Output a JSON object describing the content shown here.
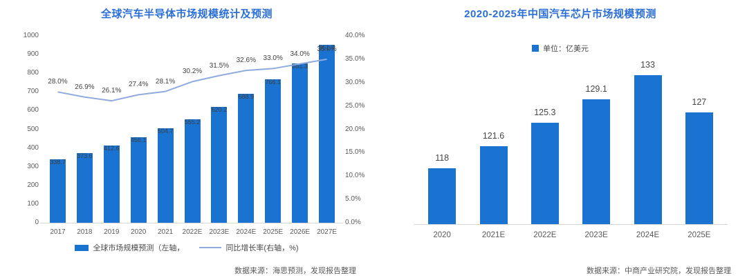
{
  "chart_data": [
    {
      "type": "combo-bar-line",
      "title": "全球汽车半导体市场规模统计及预测",
      "categories": [
        "2017",
        "2018",
        "2019",
        "2020",
        "2021",
        "2022E",
        "2023E",
        "2024E",
        "2025E",
        "2026E",
        "2027E"
      ],
      "series": [
        {
          "name": "全球市场规模预测（左轴，",
          "type": "bar",
          "axis": "left",
          "values": [
            338.7,
            373.6,
            412.6,
            456.1,
            504.7,
            555.2,
            620.2,
            688.9,
            766.1,
            851.3,
            951.7
          ],
          "value_labels": [
            "338.7",
            "373.6",
            "412.6",
            "456.1",
            "504.7",
            "555.2",
            "620.2",
            "688.9",
            "766.1",
            "851.3",
            "951.7"
          ]
        },
        {
          "name": "同比增长率(右轴，%)",
          "type": "line",
          "axis": "right",
          "values": [
            28.0,
            26.9,
            26.1,
            27.4,
            28.1,
            30.2,
            31.5,
            32.6,
            33.0,
            34.0,
            35.0
          ],
          "value_labels": [
            "28.0%",
            "26.9%",
            "26.1%",
            "27.4%",
            "28.1%",
            "30.2%",
            "31.5%",
            "32.6%",
            "33.0%",
            "34.0%",
            "35.0%"
          ]
        }
      ],
      "left_axis": {
        "min": 0,
        "max": 1000,
        "step": 100,
        "ticks": [
          "1000",
          "900",
          "800",
          "700",
          "600",
          "500",
          "400",
          "300",
          "200",
          "100",
          "0"
        ]
      },
      "right_axis": {
        "min": 0,
        "max": 40,
        "step": 5,
        "ticks": [
          "40.0%",
          "35.0%",
          "30.0%",
          "25.0%",
          "20.0%",
          "15.0%",
          "10.0%",
          "5.0%",
          "0.0%"
        ]
      },
      "grid": false,
      "legend_position": "bottom",
      "source": "数据来源：海思预测，发现报告整理",
      "colors": {
        "bar": "#1a73d1",
        "line": "#8faadc",
        "title": "#2b6fd6",
        "label": "#595959"
      }
    },
    {
      "type": "bar",
      "title": "2020-2025年中国汽车芯片市场规模预测",
      "unit_legend": "单位：亿美元",
      "categories": [
        "2020",
        "2021E",
        "2022E",
        "2023E",
        "2024E",
        "2025E"
      ],
      "values": [
        118,
        121.6,
        125.3,
        129.1,
        133,
        127
      ],
      "value_labels": [
        "118",
        "121.6",
        "125.3",
        "129.1",
        "133",
        "127"
      ],
      "ylabel": "",
      "xlabel": "",
      "ylim_est": [
        109,
        134
      ],
      "axis_note": "y-axis hidden, baseline truncated (does not start at 0)",
      "grid": false,
      "legend_position": "top",
      "source": "数据来源：中商产业研究院，发现报告整理",
      "colors": {
        "bar": "#1a73d1",
        "title": "#2b6fd6",
        "label": "#454545"
      }
    }
  ]
}
